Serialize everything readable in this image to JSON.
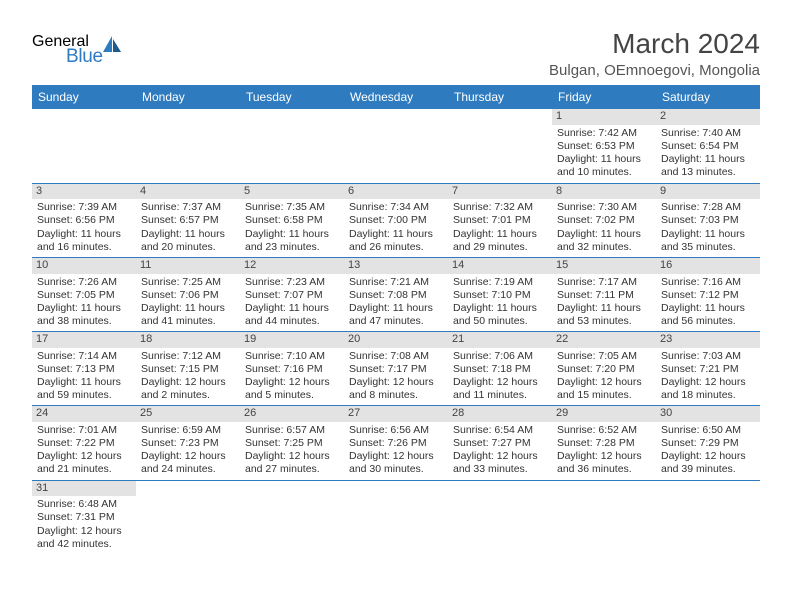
{
  "logo": {
    "general": "Genera",
    "l": "l",
    "blue": "Blue"
  },
  "title": "March 2024",
  "subtitle": "Bulgan, OEmnoegovi, Mongolia",
  "colors": {
    "header_bg": "#2f7bbf",
    "header_text": "#ffffff",
    "daynum_bg": "#e3e3e3",
    "border": "#2f7bbf",
    "text": "#333333",
    "title": "#444444",
    "logo_gray": "#5a5a5a",
    "logo_blue": "#2f7bbf"
  },
  "dayHeaders": [
    "Sunday",
    "Monday",
    "Tuesday",
    "Wednesday",
    "Thursday",
    "Friday",
    "Saturday"
  ],
  "weeks": [
    [
      null,
      null,
      null,
      null,
      null,
      {
        "n": "1",
        "sr": "Sunrise: 7:42 AM",
        "ss": "Sunset: 6:53 PM",
        "d1": "Daylight: 11 hours",
        "d2": "and 10 minutes."
      },
      {
        "n": "2",
        "sr": "Sunrise: 7:40 AM",
        "ss": "Sunset: 6:54 PM",
        "d1": "Daylight: 11 hours",
        "d2": "and 13 minutes."
      }
    ],
    [
      {
        "n": "3",
        "sr": "Sunrise: 7:39 AM",
        "ss": "Sunset: 6:56 PM",
        "d1": "Daylight: 11 hours",
        "d2": "and 16 minutes."
      },
      {
        "n": "4",
        "sr": "Sunrise: 7:37 AM",
        "ss": "Sunset: 6:57 PM",
        "d1": "Daylight: 11 hours",
        "d2": "and 20 minutes."
      },
      {
        "n": "5",
        "sr": "Sunrise: 7:35 AM",
        "ss": "Sunset: 6:58 PM",
        "d1": "Daylight: 11 hours",
        "d2": "and 23 minutes."
      },
      {
        "n": "6",
        "sr": "Sunrise: 7:34 AM",
        "ss": "Sunset: 7:00 PM",
        "d1": "Daylight: 11 hours",
        "d2": "and 26 minutes."
      },
      {
        "n": "7",
        "sr": "Sunrise: 7:32 AM",
        "ss": "Sunset: 7:01 PM",
        "d1": "Daylight: 11 hours",
        "d2": "and 29 minutes."
      },
      {
        "n": "8",
        "sr": "Sunrise: 7:30 AM",
        "ss": "Sunset: 7:02 PM",
        "d1": "Daylight: 11 hours",
        "d2": "and 32 minutes."
      },
      {
        "n": "9",
        "sr": "Sunrise: 7:28 AM",
        "ss": "Sunset: 7:03 PM",
        "d1": "Daylight: 11 hours",
        "d2": "and 35 minutes."
      }
    ],
    [
      {
        "n": "10",
        "sr": "Sunrise: 7:26 AM",
        "ss": "Sunset: 7:05 PM",
        "d1": "Daylight: 11 hours",
        "d2": "and 38 minutes."
      },
      {
        "n": "11",
        "sr": "Sunrise: 7:25 AM",
        "ss": "Sunset: 7:06 PM",
        "d1": "Daylight: 11 hours",
        "d2": "and 41 minutes."
      },
      {
        "n": "12",
        "sr": "Sunrise: 7:23 AM",
        "ss": "Sunset: 7:07 PM",
        "d1": "Daylight: 11 hours",
        "d2": "and 44 minutes."
      },
      {
        "n": "13",
        "sr": "Sunrise: 7:21 AM",
        "ss": "Sunset: 7:08 PM",
        "d1": "Daylight: 11 hours",
        "d2": "and 47 minutes."
      },
      {
        "n": "14",
        "sr": "Sunrise: 7:19 AM",
        "ss": "Sunset: 7:10 PM",
        "d1": "Daylight: 11 hours",
        "d2": "and 50 minutes."
      },
      {
        "n": "15",
        "sr": "Sunrise: 7:17 AM",
        "ss": "Sunset: 7:11 PM",
        "d1": "Daylight: 11 hours",
        "d2": "and 53 minutes."
      },
      {
        "n": "16",
        "sr": "Sunrise: 7:16 AM",
        "ss": "Sunset: 7:12 PM",
        "d1": "Daylight: 11 hours",
        "d2": "and 56 minutes."
      }
    ],
    [
      {
        "n": "17",
        "sr": "Sunrise: 7:14 AM",
        "ss": "Sunset: 7:13 PM",
        "d1": "Daylight: 11 hours",
        "d2": "and 59 minutes."
      },
      {
        "n": "18",
        "sr": "Sunrise: 7:12 AM",
        "ss": "Sunset: 7:15 PM",
        "d1": "Daylight: 12 hours",
        "d2": "and 2 minutes."
      },
      {
        "n": "19",
        "sr": "Sunrise: 7:10 AM",
        "ss": "Sunset: 7:16 PM",
        "d1": "Daylight: 12 hours",
        "d2": "and 5 minutes."
      },
      {
        "n": "20",
        "sr": "Sunrise: 7:08 AM",
        "ss": "Sunset: 7:17 PM",
        "d1": "Daylight: 12 hours",
        "d2": "and 8 minutes."
      },
      {
        "n": "21",
        "sr": "Sunrise: 7:06 AM",
        "ss": "Sunset: 7:18 PM",
        "d1": "Daylight: 12 hours",
        "d2": "and 11 minutes."
      },
      {
        "n": "22",
        "sr": "Sunrise: 7:05 AM",
        "ss": "Sunset: 7:20 PM",
        "d1": "Daylight: 12 hours",
        "d2": "and 15 minutes."
      },
      {
        "n": "23",
        "sr": "Sunrise: 7:03 AM",
        "ss": "Sunset: 7:21 PM",
        "d1": "Daylight: 12 hours",
        "d2": "and 18 minutes."
      }
    ],
    [
      {
        "n": "24",
        "sr": "Sunrise: 7:01 AM",
        "ss": "Sunset: 7:22 PM",
        "d1": "Daylight: 12 hours",
        "d2": "and 21 minutes."
      },
      {
        "n": "25",
        "sr": "Sunrise: 6:59 AM",
        "ss": "Sunset: 7:23 PM",
        "d1": "Daylight: 12 hours",
        "d2": "and 24 minutes."
      },
      {
        "n": "26",
        "sr": "Sunrise: 6:57 AM",
        "ss": "Sunset: 7:25 PM",
        "d1": "Daylight: 12 hours",
        "d2": "and 27 minutes."
      },
      {
        "n": "27",
        "sr": "Sunrise: 6:56 AM",
        "ss": "Sunset: 7:26 PM",
        "d1": "Daylight: 12 hours",
        "d2": "and 30 minutes."
      },
      {
        "n": "28",
        "sr": "Sunrise: 6:54 AM",
        "ss": "Sunset: 7:27 PM",
        "d1": "Daylight: 12 hours",
        "d2": "and 33 minutes."
      },
      {
        "n": "29",
        "sr": "Sunrise: 6:52 AM",
        "ss": "Sunset: 7:28 PM",
        "d1": "Daylight: 12 hours",
        "d2": "and 36 minutes."
      },
      {
        "n": "30",
        "sr": "Sunrise: 6:50 AM",
        "ss": "Sunset: 7:29 PM",
        "d1": "Daylight: 12 hours",
        "d2": "and 39 minutes."
      }
    ],
    [
      {
        "n": "31",
        "sr": "Sunrise: 6:48 AM",
        "ss": "Sunset: 7:31 PM",
        "d1": "Daylight: 12 hours",
        "d2": "and 42 minutes."
      },
      null,
      null,
      null,
      null,
      null,
      null
    ]
  ]
}
